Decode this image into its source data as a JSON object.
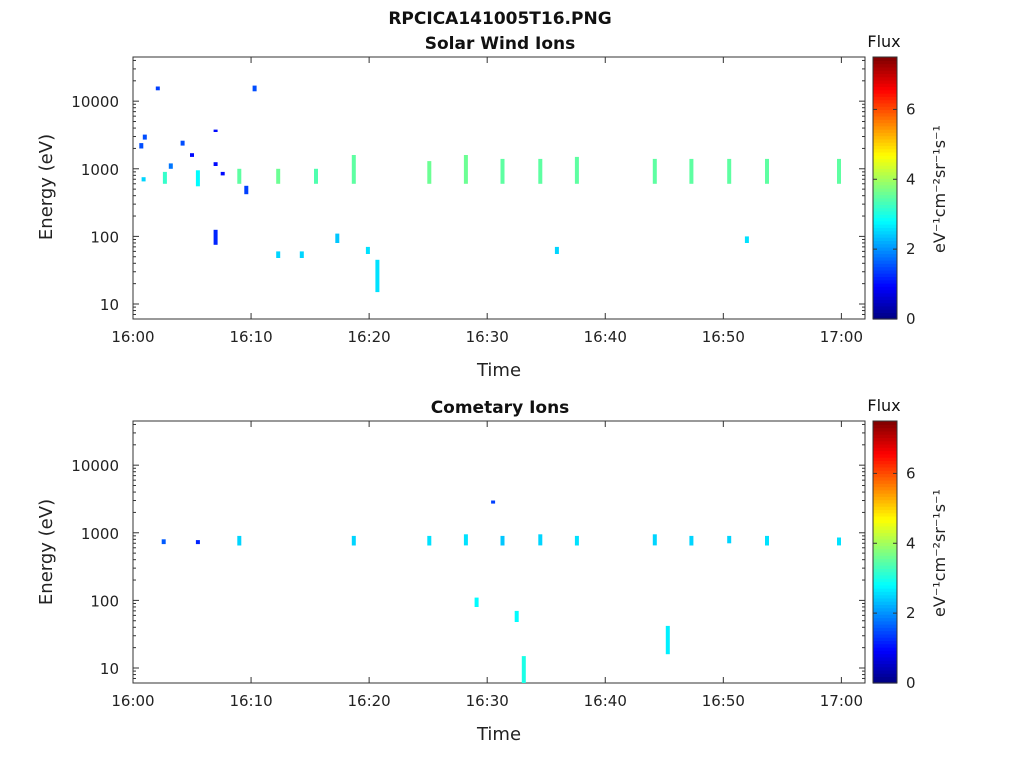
{
  "figure": {
    "title": "RPCICA141005T16.PNG"
  },
  "colorbar": {
    "title": "Flux",
    "label": "eV⁻¹cm⁻²sr⁻¹s⁻¹",
    "range": [
      0,
      7.5
    ],
    "ticks": [
      "0",
      "2",
      "4",
      "6"
    ],
    "colors": [
      "#00007f",
      "#0000ff",
      "#0080ff",
      "#00ffff",
      "#80ff80",
      "#ffff00",
      "#ff8000",
      "#ff0000",
      "#7f0000"
    ]
  },
  "chart_data": [
    {
      "type": "heatmap",
      "title": "Solar Wind Ions",
      "xlabel": "Time",
      "ylabel": "Energy (eV)",
      "yscale": "log",
      "xlim": [
        "16:00",
        "17:02"
      ],
      "ylim": [
        6,
        45000
      ],
      "xticks": [
        "16:00",
        "16:10",
        "16:20",
        "16:30",
        "16:40",
        "16:50",
        "17:00"
      ],
      "yticks": [
        "10",
        "100",
        "1000",
        "10000"
      ],
      "cells": [
        {
          "t": 0.7,
          "e_lo": 2000,
          "e_hi": 2400,
          "flux": 1.5
        },
        {
          "t": 1.0,
          "e_lo": 2700,
          "e_hi": 3200,
          "flux": 1.5
        },
        {
          "t": 0.9,
          "e_lo": 650,
          "e_hi": 750,
          "flux": 2.5
        },
        {
          "t": 2.1,
          "e_lo": 14500,
          "e_hi": 16500,
          "flux": 1.4
        },
        {
          "t": 2.7,
          "e_lo": 600,
          "e_hi": 900,
          "flux": 3.2
        },
        {
          "t": 3.2,
          "e_lo": 1000,
          "e_hi": 1200,
          "flux": 1.8
        },
        {
          "t": 4.2,
          "e_lo": 2200,
          "e_hi": 2600,
          "flux": 1.5
        },
        {
          "t": 5.0,
          "e_lo": 1500,
          "e_hi": 1700,
          "flux": 1.0
        },
        {
          "t": 5.5,
          "e_lo": 550,
          "e_hi": 950,
          "flux": 2.8
        },
        {
          "t": 7.0,
          "e_lo": 3500,
          "e_hi": 3800,
          "flux": 1.0
        },
        {
          "t": 7.0,
          "e_lo": 1100,
          "e_hi": 1250,
          "flux": 1.0
        },
        {
          "t": 7.0,
          "e_lo": 75,
          "e_hi": 125,
          "flux": 1.2
        },
        {
          "t": 7.6,
          "e_lo": 800,
          "e_hi": 900,
          "flux": 1.0
        },
        {
          "t": 9.0,
          "e_lo": 600,
          "e_hi": 1000,
          "flux": 3.5
        },
        {
          "t": 9.6,
          "e_lo": 420,
          "e_hi": 560,
          "flux": 1.4
        },
        {
          "t": 10.3,
          "e_lo": 14000,
          "e_hi": 17000,
          "flux": 1.5
        },
        {
          "t": 12.3,
          "e_lo": 600,
          "e_hi": 1000,
          "flux": 3.6
        },
        {
          "t": 12.3,
          "e_lo": 48,
          "e_hi": 60,
          "flux": 2.5
        },
        {
          "t": 14.3,
          "e_lo": 48,
          "e_hi": 60,
          "flux": 2.5
        },
        {
          "t": 15.5,
          "e_lo": 600,
          "e_hi": 1000,
          "flux": 3.4
        },
        {
          "t": 17.3,
          "e_lo": 80,
          "e_hi": 110,
          "flux": 2.4
        },
        {
          "t": 18.7,
          "e_lo": 600,
          "e_hi": 1600,
          "flux": 3.5
        },
        {
          "t": 19.9,
          "e_lo": 55,
          "e_hi": 70,
          "flux": 2.6
        },
        {
          "t": 20.7,
          "e_lo": 15,
          "e_hi": 45,
          "flux": 2.6
        },
        {
          "t": 25.1,
          "e_lo": 600,
          "e_hi": 1300,
          "flux": 3.6
        },
        {
          "t": 28.2,
          "e_lo": 600,
          "e_hi": 1600,
          "flux": 3.6
        },
        {
          "t": 31.3,
          "e_lo": 600,
          "e_hi": 1400,
          "flux": 3.5
        },
        {
          "t": 34.5,
          "e_lo": 600,
          "e_hi": 1400,
          "flux": 3.5
        },
        {
          "t": 37.6,
          "e_lo": 600,
          "e_hi": 1500,
          "flux": 3.5
        },
        {
          "t": 44.2,
          "e_lo": 600,
          "e_hi": 1400,
          "flux": 3.5
        },
        {
          "t": 47.3,
          "e_lo": 600,
          "e_hi": 1400,
          "flux": 3.5
        },
        {
          "t": 50.5,
          "e_lo": 600,
          "e_hi": 1400,
          "flux": 3.5
        },
        {
          "t": 53.7,
          "e_lo": 600,
          "e_hi": 1400,
          "flux": 3.5
        },
        {
          "t": 59.8,
          "e_lo": 600,
          "e_hi": 1400,
          "flux": 3.5
        },
        {
          "t": 35.9,
          "e_lo": 55,
          "e_hi": 70,
          "flux": 2.5
        },
        {
          "t": 52.0,
          "e_lo": 80,
          "e_hi": 100,
          "flux": 2.6
        }
      ]
    },
    {
      "type": "heatmap",
      "title": "Cometary Ions",
      "xlabel": "Time",
      "ylabel": "Energy (eV)",
      "yscale": "log",
      "xlim": [
        "16:00",
        "17:02"
      ],
      "ylim": [
        6,
        45000
      ],
      "xticks": [
        "16:00",
        "16:10",
        "16:20",
        "16:30",
        "16:40",
        "16:50",
        "17:00"
      ],
      "yticks": [
        "10",
        "100",
        "1000",
        "10000"
      ],
      "cells": [
        {
          "t": 2.6,
          "e_lo": 680,
          "e_hi": 800,
          "flux": 1.6
        },
        {
          "t": 5.5,
          "e_lo": 680,
          "e_hi": 780,
          "flux": 1.2
        },
        {
          "t": 9.0,
          "e_lo": 650,
          "e_hi": 900,
          "flux": 2.5
        },
        {
          "t": 18.7,
          "e_lo": 650,
          "e_hi": 900,
          "flux": 2.5
        },
        {
          "t": 25.1,
          "e_lo": 650,
          "e_hi": 900,
          "flux": 2.6
        },
        {
          "t": 28.2,
          "e_lo": 650,
          "e_hi": 950,
          "flux": 2.6
        },
        {
          "t": 30.5,
          "e_lo": 2700,
          "e_hi": 3000,
          "flux": 1.4
        },
        {
          "t": 31.3,
          "e_lo": 650,
          "e_hi": 900,
          "flux": 2.4
        },
        {
          "t": 34.5,
          "e_lo": 650,
          "e_hi": 950,
          "flux": 2.5
        },
        {
          "t": 37.6,
          "e_lo": 650,
          "e_hi": 900,
          "flux": 2.6
        },
        {
          "t": 44.2,
          "e_lo": 650,
          "e_hi": 950,
          "flux": 2.5
        },
        {
          "t": 47.3,
          "e_lo": 650,
          "e_hi": 900,
          "flux": 2.5
        },
        {
          "t": 50.5,
          "e_lo": 700,
          "e_hi": 900,
          "flux": 2.5
        },
        {
          "t": 53.7,
          "e_lo": 650,
          "e_hi": 900,
          "flux": 2.6
        },
        {
          "t": 59.8,
          "e_lo": 650,
          "e_hi": 850,
          "flux": 2.6
        },
        {
          "t": 29.1,
          "e_lo": 80,
          "e_hi": 110,
          "flux": 2.8
        },
        {
          "t": 32.5,
          "e_lo": 48,
          "e_hi": 70,
          "flux": 2.8
        },
        {
          "t": 33.1,
          "e_lo": 6,
          "e_hi": 15,
          "flux": 3.0
        },
        {
          "t": 45.3,
          "e_lo": 16,
          "e_hi": 42,
          "flux": 2.7
        }
      ]
    }
  ]
}
